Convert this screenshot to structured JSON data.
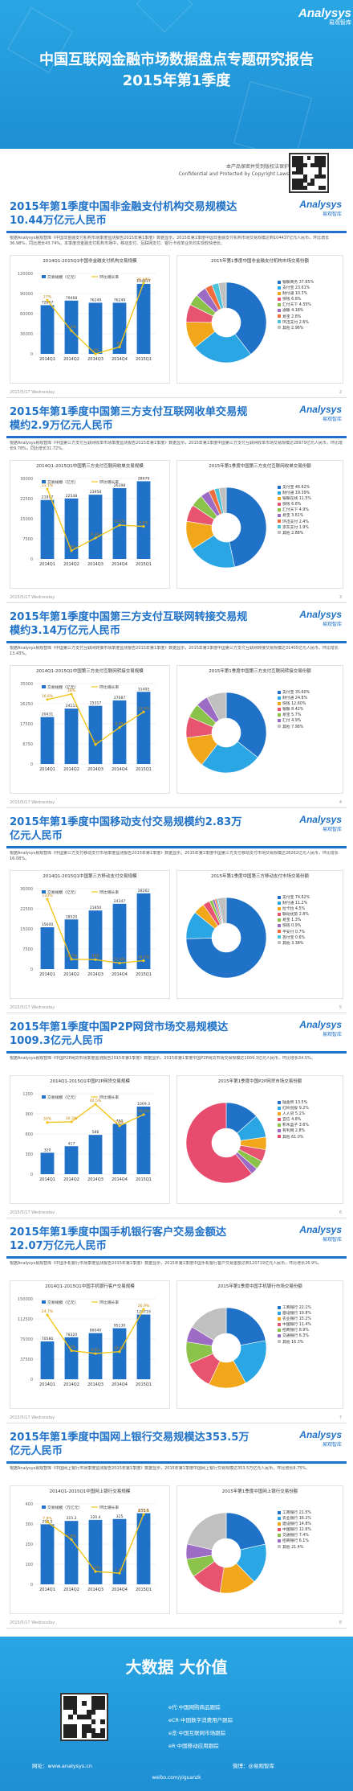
{
  "header": {
    "logo": "Analysys",
    "logo_cn": "易观智库",
    "title_line1": "中国互联网金融市场数据盘点专题研究报告",
    "title_line2": "2015年第1季度",
    "confidential_cn": "本产品保密并受到版权法保护",
    "confidential_en": "Confidential and Protected by Copyright Laws"
  },
  "slides": [
    {
      "title": "2015年第1季度中国非金融支付机构交易规模达10.44万亿元人民币",
      "text": "根据Analysys易观智库《中国非金融支付机构市场季度监测报告2015年第1季度》数据显示，2015年第1季度中国非金融支付机构市场交易规模达到104437亿元人民币，环比增长36.98%，同比增长43.74%。本季度非金融支付机构市场中，移动支付、互联网支付、银行卡收单业务均实现较快增长。",
      "left_title": "2014Q1-2015Q1中国非金融支付机构交易规模",
      "right_title": "2015年第1季度中国非金融支付机构市场交易份额",
      "note": "注：以上数据根据厂商访谈、易观智库研究模型推算...",
      "footer": "2015/5/17 Wednesday",
      "page": "2",
      "legend": [
        {
          "label": "银联商务 37.65%",
          "color": "#1f72c8"
        },
        {
          "label": "支付宝 23.61%",
          "color": "#2aa6e4"
        },
        {
          "label": "财付通 10.3%",
          "color": "#f2a71b"
        },
        {
          "label": "快钱 6.8%",
          "color": "#e8536f"
        },
        {
          "label": "汇付天下 4.35%",
          "color": "#8bc34a"
        },
        {
          "label": "通联 4.18%",
          "color": "#9c6bc4"
        },
        {
          "label": "易宝 2.8%",
          "color": "#f26d3d"
        },
        {
          "label": "环迅支付 2.6%",
          "color": "#4cc3d9"
        },
        {
          "label": "其他 2.96%",
          "color": "#c0c0c0"
        }
      ],
      "pie": [
        37.65,
        23.61,
        10.3,
        6.8,
        4.35,
        4.18,
        2.8,
        2.6,
        2.96
      ]
    },
    {
      "title": "2015年第1季度中国第三方支付互联网收单交易规模约2.9万亿元人民币",
      "text": "根据Analysys易观智库《中国第三方支付互联网收单市场季度监测报告2015年第1季度》数据显示，2015年第1季度中国第三方支付互联网收单市场交易规模达28979亿元人民币，环比增长9.78%，同比增长31.72%。",
      "left_title": "2014Q1-2015Q1中国第三方支付互联网收单交易规模",
      "right_title": "2015年第1季度中国第三方支付互联网收单交易份额",
      "footer": "2015/5/17 Wednesday",
      "page": "3",
      "legend": [
        {
          "label": "支付宝 46.62%",
          "color": "#1f72c8"
        },
        {
          "label": "财付通 19.39%",
          "color": "#2aa6e4"
        },
        {
          "label": "银联在线 11.5%",
          "color": "#f2a71b"
        },
        {
          "label": "快钱 6.8%",
          "color": "#e8536f"
        },
        {
          "label": "汇付天下 4.9%",
          "color": "#8bc34a"
        },
        {
          "label": "易宝 3.61%",
          "color": "#9c6bc4"
        },
        {
          "label": "环迅支付 2.4%",
          "color": "#f26d3d"
        },
        {
          "label": "京东支付 1.9%",
          "color": "#4cc3d9"
        },
        {
          "label": "其他 2.88%",
          "color": "#c0c0c0"
        }
      ],
      "pie": [
        46.62,
        19.39,
        11.5,
        6.8,
        4.9,
        3.61,
        2.4,
        1.9,
        2.88
      ]
    },
    {
      "title": "2015年第1季度中国第三方支付互联网转接交易规模约3.14万亿元人民币",
      "text": "根据Analysys易观智库《中国第三方支付互联网转接市场季度监测报告2015年第1季度》数据显示，2015年第1季度中国第三方支付互联网转接交易规模达31405亿元人民币，环比增长13.43%。",
      "left_title": "2014Q1-2015Q1中国第三方支付互联网转接交易规模",
      "right_title": "2015年第1季度中国第三方支付互联网转接交易份额",
      "footer": "2015/5/17 Wednesday",
      "page": "4",
      "legend": [
        {
          "label": "支付宝 35.60%",
          "color": "#1f72c8"
        },
        {
          "label": "财付通 24.8%",
          "color": "#2aa6e4"
        },
        {
          "label": "快钱 12.60%",
          "color": "#f2a71b"
        },
        {
          "label": "银联 8.42%",
          "color": "#e8536f"
        },
        {
          "label": "易宝 5.7%",
          "color": "#8bc34a"
        },
        {
          "label": "汇付 4.9%",
          "color": "#9c6bc4"
        },
        {
          "label": "其他 7.98%",
          "color": "#c0c0c0"
        }
      ],
      "pie": [
        35.6,
        24.8,
        12.6,
        8.42,
        5.7,
        4.9,
        7.98
      ]
    },
    {
      "title": "2015年第1季度中国移动支付交易规模约2.83万亿元人民币",
      "text": "根据Analysys易观智库《中国第三方支付移动支付市场季度监测报告2015年第1季度》数据显示，2015年第1季度中国第三方支付移动支付市场交易规模达28262亿元人民币，环比增长16.08%。",
      "left_title": "2014Q1-2015Q1中国第三方移动支付交易规模",
      "right_title": "2015年第1季度中国第三方移动支付市场交易份额",
      "footer": "2015/5/17 Wednesday",
      "page": "5",
      "legend": [
        {
          "label": "支付宝 74.62%",
          "color": "#1f72c8"
        },
        {
          "label": "财付通 11.2%",
          "color": "#2aa6e4"
        },
        {
          "label": "拉卡拉 4.5%",
          "color": "#f2a71b"
        },
        {
          "label": "联动优势 2.8%",
          "color": "#e8536f"
        },
        {
          "label": "易宝 1.3%",
          "color": "#8bc34a"
        },
        {
          "label": "快钱 0.9%",
          "color": "#9c6bc4"
        },
        {
          "label": "平安付 0.7%",
          "color": "#f26d3d"
        },
        {
          "label": "百付宝 0.6%",
          "color": "#4cc3d9"
        },
        {
          "label": "其他 3.38%",
          "color": "#c0c0c0"
        }
      ],
      "pie": [
        74.62,
        11.2,
        4.5,
        2.8,
        1.3,
        0.9,
        0.7,
        0.6,
        3.38
      ]
    },
    {
      "title": "2015年第1季度中国P2P网贷市场交易规模达1009.3亿元人民币",
      "text": "根据Analysys易观智库《中国P2P网贷市场季度监测报告2015年第1季度》数据显示，2015年第1季度中国P2P网贷市场交易规模达1009.3亿元人民币，环比增长34.5%。",
      "left_title": "2014Q1-2015Q1中国P2P网贷交易规模",
      "right_title": "2015年第1季度中国P2P网贷市场交易份额",
      "footer": "2015/5/17 Wednesday",
      "page": "6",
      "legend": [
        {
          "label": "陆金所 13.5%",
          "color": "#1f72c8"
        },
        {
          "label": "红岭创投 9.2%",
          "color": "#2aa6e4"
        },
        {
          "label": "人人贷 5.1%",
          "color": "#f2a71b"
        },
        {
          "label": "宜信 4.8%",
          "color": "#e8536f"
        },
        {
          "label": "积木盒子 3.6%",
          "color": "#8bc34a"
        },
        {
          "label": "有利网 2.8%",
          "color": "#9c6bc4"
        },
        {
          "label": "其他 61.0%",
          "color": "#e74c6f"
        }
      ],
      "pie": [
        13.5,
        9.2,
        5.1,
        4.8,
        3.6,
        2.8,
        61.0
      ]
    },
    {
      "title": "2015年第1季度中国手机银行客户交易金额达12.07万亿元人民币",
      "text": "根据Analysys易观智库《中国手机银行市场季度监测报告2015年第1季度》数据显示，2015年第1季度中国手机银行客户交易金额达到120719亿元人民币，环比增长26.9%。",
      "left_title": "2014Q1-2015Q1中国手机银行客户交易规模",
      "right_title": "2015年第1季度中国手机银行市场交易份额",
      "footer": "2015/5/17 Wednesday",
      "page": "7",
      "legend": [
        {
          "label": "工商银行 22.1%",
          "color": "#1f72c8"
        },
        {
          "label": "建设银行 19.8%",
          "color": "#2aa6e4"
        },
        {
          "label": "农业银行 15.2%",
          "color": "#f2a71b"
        },
        {
          "label": "中国银行 11.4%",
          "color": "#e8536f"
        },
        {
          "label": "招商银行 8.9%",
          "color": "#8bc34a"
        },
        {
          "label": "交通银行 6.3%",
          "color": "#9c6bc4"
        },
        {
          "label": "其他 16.3%",
          "color": "#c0c0c0"
        }
      ],
      "pie": [
        22.1,
        19.8,
        15.2,
        11.4,
        8.9,
        6.3,
        16.3
      ]
    },
    {
      "title": "2015年第1季度中国网上银行交易规模达353.5万亿元人民币",
      "text": "根据Analysys易观智库《中国网上银行市场季度监测报告2015年第1季度》数据显示，2015年第1季度中国网上银行交易规模达353.5万亿元人民币，环比增长8.75%。",
      "left_title": "2014Q1-2015Q1中国网上银行交易规模",
      "right_title": "2015年第1季度中国网上银行交易份额",
      "footer": "2015/5/17 Wednesday",
      "page": "8",
      "legend": [
        {
          "label": "工商银行 21.5%",
          "color": "#1f72c8"
        },
        {
          "label": "农业银行 16.2%",
          "color": "#2aa6e4"
        },
        {
          "label": "建设银行 14.8%",
          "color": "#f2a71b"
        },
        {
          "label": "中国银行 12.6%",
          "color": "#e8536f"
        },
        {
          "label": "交通银行 7.4%",
          "color": "#8bc34a"
        },
        {
          "label": "招商银行 6.1%",
          "color": "#9c6bc4"
        },
        {
          "label": "其他 21.4%",
          "color": "#c0c0c0"
        }
      ],
      "pie": [
        21.5,
        16.2,
        14.8,
        12.6,
        7.4,
        6.1,
        21.4
      ]
    }
  ],
  "chart_data": [
    {
      "type": "bar",
      "categories": [
        "2014Q1",
        "2014Q2",
        "2014Q3",
        "2014Q4",
        "2015Q1"
      ],
      "series": [
        {
          "name": "交易规模（亿元）",
          "values": [
            72657,
            79468,
            76249,
            76249,
            104437
          ]
        },
        {
          "name": "环比增长率",
          "values": [
            27.0,
            9.4,
            -4.0,
            0.0,
            36.98
          ]
        }
      ],
      "ylim": [
        0,
        120000
      ]
    },
    {
      "type": "bar",
      "categories": [
        "2014Q1",
        "2014Q2",
        "2014Q3",
        "2014Q4",
        "2015Q1"
      ],
      "series": [
        {
          "name": "交易规模（亿元）",
          "values": [
            21997,
            22548,
            23958,
            26398,
            28979
          ]
        },
        {
          "name": "环比增长率",
          "values": [
            21.1,
            2.5,
            6.3,
            10.2,
            9.8
          ]
        }
      ],
      "ylim": [
        0,
        30000
      ]
    },
    {
      "type": "bar",
      "categories": [
        "2014Q1",
        "2014Q2",
        "2014Q3",
        "2014Q4",
        "2015Q1"
      ],
      "series": [
        {
          "name": "交易规模（亿元）",
          "values": [
            20431,
            24114,
            25317,
            27687,
            31405
          ]
        },
        {
          "name": "环比增长率",
          "values": [
            16.6,
            18.0,
            5.0,
            9.4,
            13.4
          ]
        }
      ],
      "ylim": [
        0,
        35000
      ]
    },
    {
      "type": "bar",
      "categories": [
        "2014Q1",
        "2014Q2",
        "2014Q3",
        "2014Q4",
        "2015Q1"
      ],
      "series": [
        {
          "name": "交易规模（亿元）",
          "values": [
            15600,
            18520,
            21850,
            24347,
            28262
          ]
        },
        {
          "name": "环比增长率",
          "values": [
            133.0,
            18.7,
            18.0,
            11.4,
            16.1
          ]
        }
      ],
      "ylim": [
        0,
        30000
      ]
    },
    {
      "type": "bar",
      "categories": [
        "2014Q1",
        "2014Q2",
        "2014Q3",
        "2014Q4",
        "2015Q1"
      ],
      "series": [
        {
          "name": "交易规模（亿元）",
          "values": [
            320,
            417,
            586,
            750,
            1009.3
          ]
        },
        {
          "name": "环比增长率",
          "values": [
            30.0,
            30.3,
            40.5,
            28.0,
            34.5
          ]
        }
      ],
      "ylim": [
        0,
        1200
      ]
    },
    {
      "type": "bar",
      "categories": [
        "2014Q1",
        "2014Q2",
        "2014Q3",
        "2014Q4",
        "2015Q1"
      ],
      "series": [
        {
          "name": "交易规模（亿元）",
          "values": [
            70580,
            78320,
            86040,
            95130,
            120719
          ]
        },
        {
          "name": "环比增长率",
          "values": [
            24.7,
            11.0,
            9.9,
            10.6,
            26.9
          ]
        }
      ],
      "ylim": [
        0,
        150000
      ]
    },
    {
      "type": "bar",
      "categories": [
        "2014Q1",
        "2014Q2",
        "2014Q3",
        "2014Q4",
        "2015Q1"
      ],
      "series": [
        {
          "name": "交易规模（万亿元）",
          "values": [
            298.5,
            315.2,
            320.4,
            325.0,
            353.5
          ]
        },
        {
          "name": "环比增长率",
          "values": [
            7.8,
            5.6,
            1.6,
            1.4,
            8.75
          ]
        }
      ],
      "ylim": [
        0,
        400
      ]
    }
  ],
  "footer": {
    "slogan": "大数据  大价值",
    "links": [
      "e代·中国网购商品跟踪",
      "eCR·中国数字消费用户跟踪",
      "e览·中国互联网市场跟踪",
      "eR·中国移动应用跟踪"
    ],
    "site_label": "网址：www.analysys.cn",
    "weibo_label": "微博：@易观智库",
    "watermark": "weibo.com/yiguanzk"
  }
}
